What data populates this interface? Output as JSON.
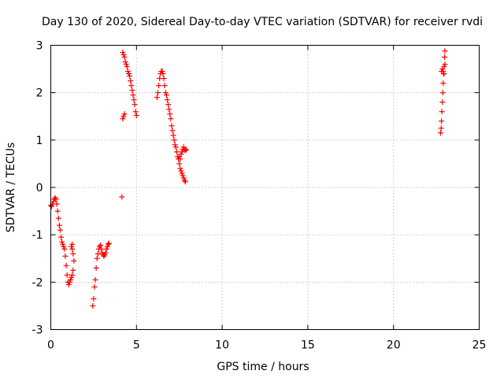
{
  "chart_data": {
    "type": "scatter",
    "title": "Day 130 of 2020, Sidereal Day-to-day VTEC variation (SDTVAR) for receiver rvdi",
    "xlabel": "GPS time / hours",
    "ylabel": "SDTVAR / TECUs",
    "xlim": [
      0,
      25
    ],
    "ylim": [
      -3,
      3
    ],
    "xticks": [
      "0",
      "5",
      "10",
      "15",
      "20",
      "25"
    ],
    "yticks": [
      "-3",
      "-2",
      "-1",
      "0",
      "1",
      "2",
      "3"
    ],
    "grid": true,
    "marker": "+",
    "color": "#ff0000",
    "series": [
      {
        "name": "SDTVAR",
        "points": [
          [
            0.0,
            -0.38
          ],
          [
            0.05,
            -0.4
          ],
          [
            0.1,
            -0.35
          ],
          [
            0.15,
            -0.3
          ],
          [
            0.2,
            -0.25
          ],
          [
            0.25,
            -0.22
          ],
          [
            0.3,
            -0.25
          ],
          [
            0.35,
            -0.35
          ],
          [
            0.4,
            -0.5
          ],
          [
            0.45,
            -0.65
          ],
          [
            0.5,
            -0.8
          ],
          [
            0.55,
            -0.9
          ],
          [
            0.6,
            -1.05
          ],
          [
            0.65,
            -1.15
          ],
          [
            0.7,
            -1.2
          ],
          [
            0.75,
            -1.25
          ],
          [
            0.8,
            -1.3
          ],
          [
            0.85,
            -1.45
          ],
          [
            0.9,
            -1.65
          ],
          [
            0.95,
            -1.85
          ],
          [
            1.0,
            -2.0
          ],
          [
            1.05,
            -2.05
          ],
          [
            1.1,
            -2.0
          ],
          [
            1.15,
            -1.95
          ],
          [
            1.2,
            -1.9
          ],
          [
            1.25,
            -1.85
          ],
          [
            1.3,
            -1.75
          ],
          [
            1.35,
            -1.55
          ],
          [
            1.2,
            -1.25
          ],
          [
            1.25,
            -1.3
          ],
          [
            1.3,
            -1.4
          ],
          [
            1.25,
            -1.2
          ],
          [
            2.45,
            -2.5
          ],
          [
            2.5,
            -2.35
          ],
          [
            2.55,
            -2.1
          ],
          [
            2.6,
            -1.95
          ],
          [
            2.65,
            -1.7
          ],
          [
            2.7,
            -1.5
          ],
          [
            2.75,
            -1.4
          ],
          [
            2.8,
            -1.3
          ],
          [
            2.85,
            -1.25
          ],
          [
            2.9,
            -1.22
          ],
          [
            2.95,
            -1.3
          ],
          [
            3.0,
            -1.38
          ],
          [
            3.05,
            -1.42
          ],
          [
            3.1,
            -1.45
          ],
          [
            3.15,
            -1.42
          ],
          [
            3.2,
            -1.38
          ],
          [
            3.25,
            -1.3
          ],
          [
            3.3,
            -1.25
          ],
          [
            3.35,
            -1.2
          ],
          [
            3.4,
            -1.18
          ],
          [
            4.15,
            -0.2
          ],
          [
            4.2,
            1.45
          ],
          [
            4.25,
            1.5
          ],
          [
            4.3,
            1.55
          ],
          [
            4.2,
            2.85
          ],
          [
            4.25,
            2.8
          ],
          [
            4.3,
            2.75
          ],
          [
            4.35,
            2.65
          ],
          [
            4.4,
            2.6
          ],
          [
            4.45,
            2.55
          ],
          [
            4.5,
            2.45
          ],
          [
            4.55,
            2.4
          ],
          [
            4.6,
            2.35
          ],
          [
            4.65,
            2.25
          ],
          [
            4.7,
            2.15
          ],
          [
            4.75,
            2.05
          ],
          [
            4.8,
            1.95
          ],
          [
            4.85,
            1.85
          ],
          [
            4.9,
            1.75
          ],
          [
            4.95,
            1.6
          ],
          [
            5.0,
            1.52
          ],
          [
            6.2,
            1.9
          ],
          [
            6.25,
            2.0
          ],
          [
            6.3,
            2.15
          ],
          [
            6.35,
            2.3
          ],
          [
            6.4,
            2.4
          ],
          [
            6.45,
            2.45
          ],
          [
            6.5,
            2.45
          ],
          [
            6.55,
            2.4
          ],
          [
            6.6,
            2.3
          ],
          [
            6.65,
            2.15
          ],
          [
            6.7,
            2.0
          ],
          [
            6.75,
            1.95
          ],
          [
            6.8,
            1.85
          ],
          [
            6.85,
            1.75
          ],
          [
            6.9,
            1.65
          ],
          [
            6.95,
            1.55
          ],
          [
            7.0,
            1.45
          ],
          [
            7.05,
            1.3
          ],
          [
            7.1,
            1.2
          ],
          [
            7.15,
            1.1
          ],
          [
            7.2,
            1.0
          ],
          [
            7.25,
            0.9
          ],
          [
            7.3,
            0.85
          ],
          [
            7.35,
            0.75
          ],
          [
            7.4,
            0.65
          ],
          [
            7.45,
            0.6
          ],
          [
            7.5,
            0.65
          ],
          [
            7.55,
            0.6
          ],
          [
            7.6,
            0.7
          ],
          [
            7.65,
            0.75
          ],
          [
            7.7,
            0.8
          ],
          [
            7.75,
            0.85
          ],
          [
            7.8,
            0.8
          ],
          [
            7.85,
            0.78
          ],
          [
            7.9,
            0.8
          ],
          [
            7.5,
            0.5
          ],
          [
            7.55,
            0.4
          ],
          [
            7.6,
            0.35
          ],
          [
            7.65,
            0.3
          ],
          [
            7.7,
            0.25
          ],
          [
            7.75,
            0.2
          ],
          [
            7.8,
            0.15
          ],
          [
            7.85,
            0.12
          ],
          [
            22.75,
            1.15
          ],
          [
            22.78,
            1.25
          ],
          [
            22.8,
            1.4
          ],
          [
            22.82,
            1.6
          ],
          [
            22.85,
            1.8
          ],
          [
            22.88,
            2.0
          ],
          [
            22.9,
            2.2
          ],
          [
            22.92,
            2.4
          ],
          [
            22.8,
            2.45
          ],
          [
            22.85,
            2.5
          ],
          [
            22.95,
            2.55
          ],
          [
            23.0,
            2.6
          ],
          [
            22.98,
            2.75
          ],
          [
            23.0,
            2.88
          ],
          [
            22.95,
            2.4
          ],
          [
            22.9,
            2.45
          ]
        ]
      }
    ]
  }
}
